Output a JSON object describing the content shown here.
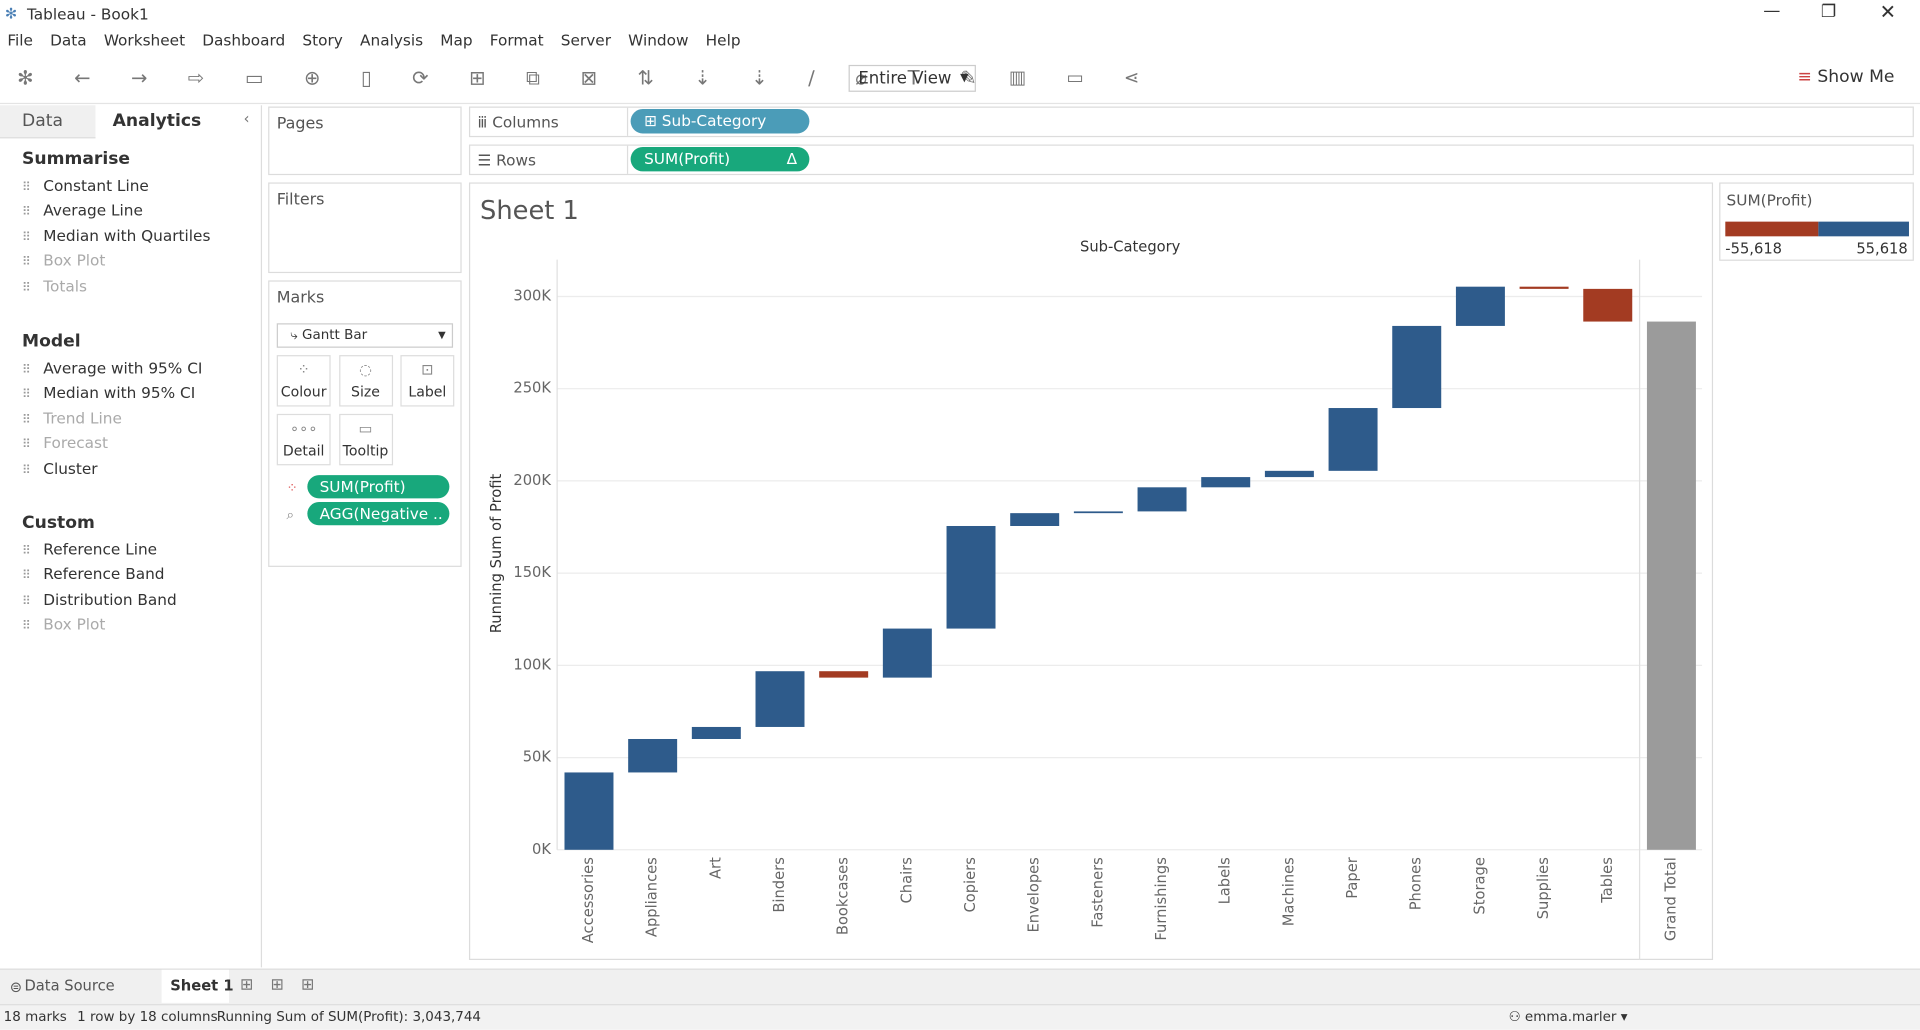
{
  "window": {
    "title": "Tableau - Book1"
  },
  "menu": [
    "File",
    "Data",
    "Worksheet",
    "Dashboard",
    "Story",
    "Analysis",
    "Map",
    "Format",
    "Server",
    "Window",
    "Help"
  ],
  "toolbar": {
    "view": "Entire View",
    "show_me": "Show Me"
  },
  "side_panel": {
    "tabs": [
      "Data",
      "Analytics"
    ],
    "sections": [
      {
        "title": "Summarise",
        "items": [
          {
            "label": "Constant Line",
            "enabled": true
          },
          {
            "label": "Average Line",
            "enabled": true
          },
          {
            "label": "Median with Quartiles",
            "enabled": true
          },
          {
            "label": "Box Plot",
            "enabled": false
          },
          {
            "label": "Totals",
            "enabled": false
          }
        ]
      },
      {
        "title": "Model",
        "items": [
          {
            "label": "Average with 95% CI",
            "enabled": true
          },
          {
            "label": "Median with 95% CI",
            "enabled": true
          },
          {
            "label": "Trend Line",
            "enabled": false
          },
          {
            "label": "Forecast",
            "enabled": false
          },
          {
            "label": "Cluster",
            "enabled": true
          }
        ]
      },
      {
        "title": "Custom",
        "items": [
          {
            "label": "Reference Line",
            "enabled": true
          },
          {
            "label": "Reference Band",
            "enabled": true
          },
          {
            "label": "Distribution Band",
            "enabled": true
          },
          {
            "label": "Box Plot",
            "enabled": false
          }
        ]
      }
    ]
  },
  "cards": {
    "pages": "Pages",
    "filters": "Filters",
    "marks": "Marks",
    "mark_type": "Gantt Bar",
    "buttons": [
      "Colour",
      "Size",
      "Label",
      "Detail",
      "Tooltip"
    ],
    "pills": [
      "SUM(Profit)",
      "AGG(Negative .."
    ]
  },
  "shelves": {
    "columns_label": "Columns",
    "columns_pill": "Sub-Category",
    "rows_label": "Rows",
    "rows_pill": "SUM(Profit)"
  },
  "sheet_title": "Sheet 1",
  "chart_data": {
    "type": "waterfall",
    "x_label": "Sub-Category",
    "y_label": "Running Sum of Profit",
    "categories": [
      "Accessories",
      "Appliances",
      "Art",
      "Binders",
      "Bookcases",
      "Chairs",
      "Copiers",
      "Envelopes",
      "Fasteners",
      "Furnishings",
      "Labels",
      "Machines",
      "Paper",
      "Phones",
      "Storage",
      "Supplies",
      "Tables"
    ],
    "values": [
      41937,
      18138,
      6528,
      30222,
      -3473,
      26590,
      55618,
      6964,
      950,
      13059,
      5546,
      3385,
      34054,
      44516,
      21279,
      -1189,
      -17725
    ],
    "total": {
      "label": "Grand Total",
      "value": 286397
    },
    "colors": {
      "increase": "#2e5b8b",
      "decrease": "#a33b22",
      "total": "#9b9b9b"
    },
    "ylim": [
      0,
      320000
    ],
    "yticks": [
      {
        "value": 0,
        "label": "0K"
      },
      {
        "value": 50000,
        "label": "50K"
      },
      {
        "value": 100000,
        "label": "100K"
      },
      {
        "value": 150000,
        "label": "150K"
      },
      {
        "value": 200000,
        "label": "200K"
      },
      {
        "value": 250000,
        "label": "250K"
      },
      {
        "value": 300000,
        "label": "300K"
      }
    ],
    "grid": true
  },
  "legend": {
    "title": "SUM(Profit)",
    "min": "-55,618",
    "max": "55,618"
  },
  "sheet_tabs": [
    "Data Source",
    "Sheet 1"
  ],
  "status": [
    "18 marks",
    "1 row by 18 columns",
    "Running Sum of SUM(Profit): 3,043,744"
  ],
  "user": "emma.marler"
}
